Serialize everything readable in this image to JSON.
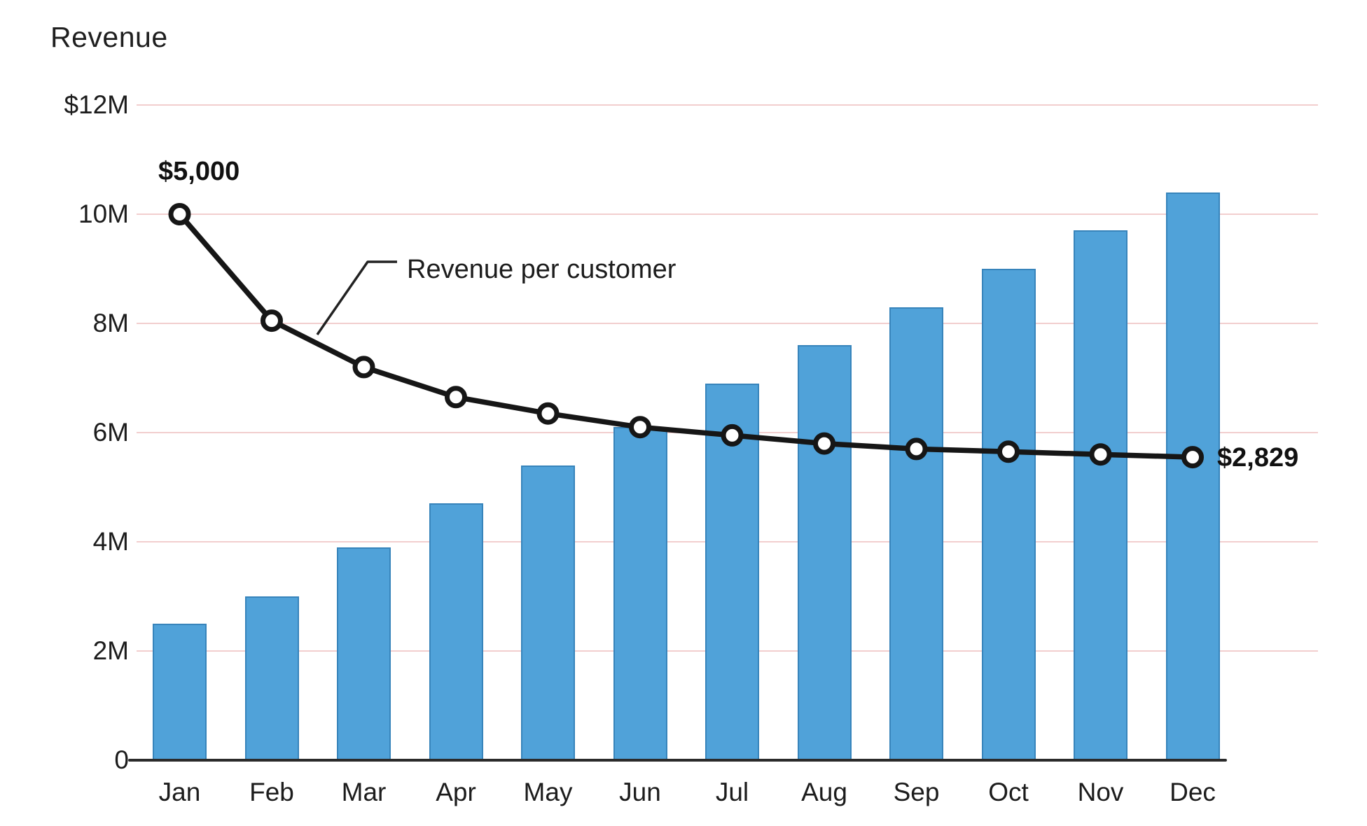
{
  "chart_data": {
    "type": "bar",
    "subtype": "combo-bar-line",
    "title": "Revenue",
    "categories": [
      "Jan",
      "Feb",
      "Mar",
      "Apr",
      "May",
      "Jun",
      "Jul",
      "Aug",
      "Sep",
      "Oct",
      "Nov",
      "Dec"
    ],
    "series": [
      {
        "name": "Revenue",
        "type": "bar",
        "unit": "$M",
        "values": [
          2.5,
          3.0,
          3.9,
          4.7,
          5.4,
          6.1,
          6.9,
          7.6,
          8.3,
          9.0,
          9.7,
          10.4
        ],
        "color": "#50a2d9"
      },
      {
        "name": "Revenue per customer",
        "type": "line",
        "note": "plotted against the left revenue axis; endpoints labeled in dollars per customer",
        "plotted_values": [
          10.0,
          8.05,
          7.2,
          6.65,
          6.35,
          6.1,
          5.95,
          5.8,
          5.7,
          5.65,
          5.6,
          5.55
        ],
        "first_point_label": "$5,000",
        "last_point_label": "$2,829",
        "line_color": "#161616",
        "marker": "white circle with black ring"
      }
    ],
    "y_ticks": [
      {
        "label": "$12M",
        "value": 12
      },
      {
        "label": "10M",
        "value": 10
      },
      {
        "label": "8M",
        "value": 8
      },
      {
        "label": "6M",
        "value": 6
      },
      {
        "label": "4M",
        "value": 4
      },
      {
        "label": "2M",
        "value": 2
      },
      {
        "label": "0",
        "value": 0
      }
    ],
    "ylim": [
      0,
      12
    ],
    "grid": "horizontal",
    "grid_color": "#f0c6c6",
    "legend": "none (direct callout label on line)"
  }
}
